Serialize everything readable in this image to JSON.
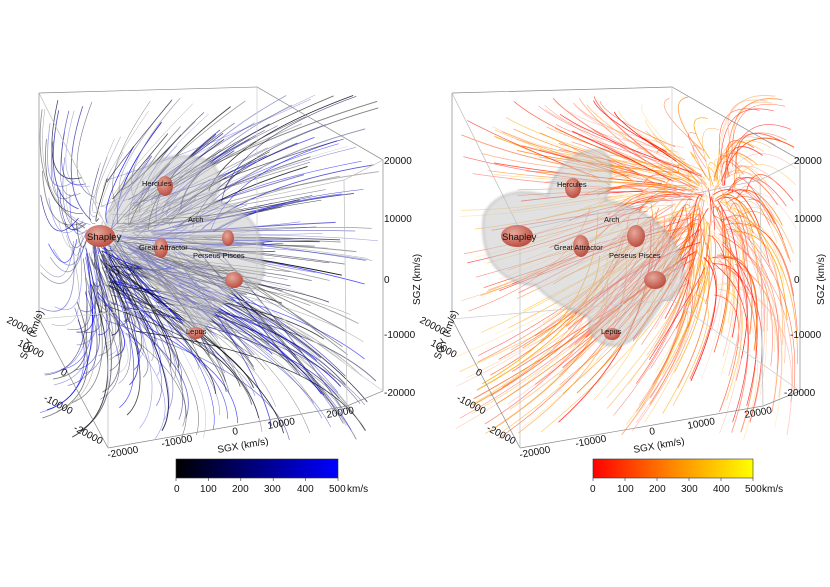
{
  "panels": [
    {
      "id": "left",
      "theme": "blue",
      "structures": [
        "Shapley",
        "Hercules",
        "Arch",
        "Great Attractor",
        "Perseus Pisces",
        "Lepus"
      ],
      "axes": {
        "sgz": {
          "title": "SGZ (km/s)",
          "ticks": [
            "20000",
            "10000",
            "0",
            "-10000",
            "-20000"
          ]
        },
        "sgx": {
          "title": "SGX (km/s)",
          "ticks": [
            "-20000",
            "-10000",
            "0",
            "10000",
            "20000"
          ]
        },
        "sgy": {
          "title": "SGY (km/s)",
          "ticks": [
            "20000",
            "10000",
            "0",
            "-10000",
            "-20000"
          ]
        }
      },
      "colorbar": {
        "ticks": [
          "0",
          "100",
          "200",
          "300",
          "400",
          "500"
        ],
        "unit": "km/s",
        "colors": [
          "#000000",
          "#0000ff"
        ]
      }
    },
    {
      "id": "right",
      "theme": "red",
      "structures": [
        "Shapley",
        "Hercules",
        "Arch",
        "Great Attractor",
        "Perseus Pisces",
        "Lepus"
      ],
      "axes": {
        "sgz": {
          "title": "SGZ (km/s)",
          "ticks": [
            "20000",
            "10000",
            "0",
            "-10000",
            "-20000"
          ]
        },
        "sgx": {
          "title": "SGX (km/s)",
          "ticks": [
            "-20000",
            "-10000",
            "0",
            "10000",
            "20000"
          ]
        },
        "sgy": {
          "title": "SGY (km/s)",
          "ticks": [
            "20000",
            "10000",
            "0",
            "-10000",
            "-20000"
          ]
        }
      },
      "colorbar": {
        "ticks": [
          "0",
          "100",
          "200",
          "300",
          "400",
          "500"
        ],
        "unit": "km/s",
        "colors": [
          "#ff0000",
          "#ff8800",
          "#ffff00"
        ]
      }
    }
  ]
}
